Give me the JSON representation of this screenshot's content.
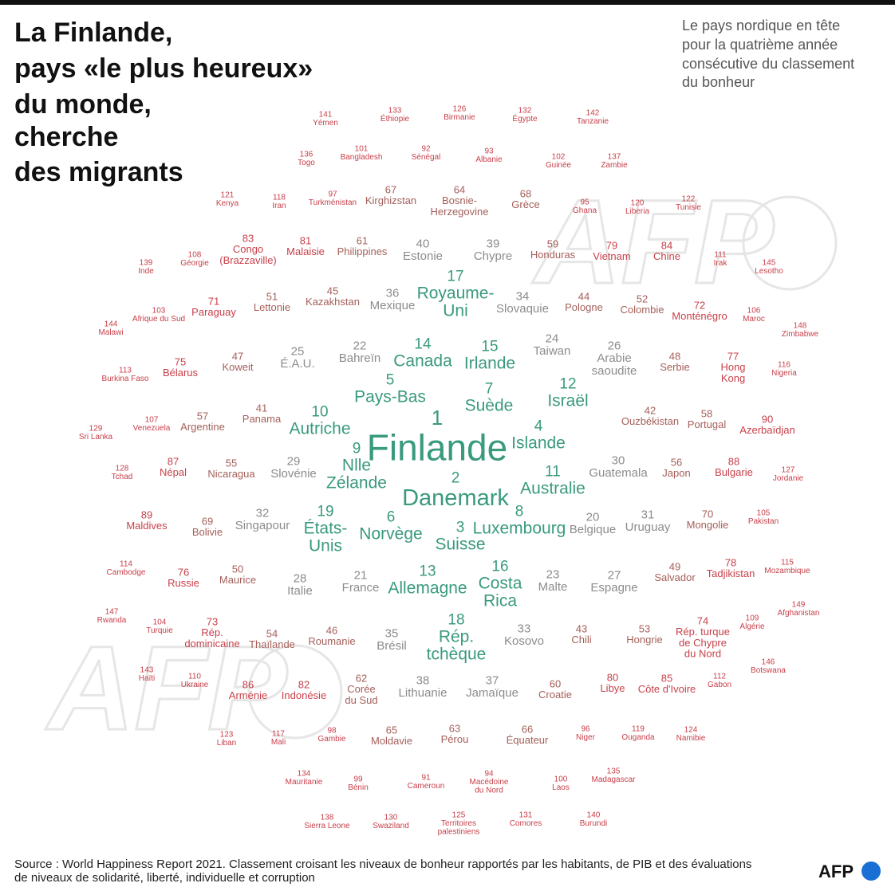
{
  "header": {
    "title": [
      "La Finlande,",
      "pays «le plus heureux»",
      "du monde,",
      "cherche",
      "des migrants"
    ],
    "subtitle": [
      "Le pays nordique en tête",
      "pour la quatrième année",
      "consécutive du classement",
      "du bonheur"
    ]
  },
  "items": [
    {
      "rank": 141,
      "name": [
        "Yémen"
      ]
    },
    {
      "rank": 133,
      "name": [
        "Éthiopie"
      ]
    },
    {
      "rank": 126,
      "name": [
        "Birmanie"
      ]
    },
    {
      "rank": 132,
      "name": [
        "Égypte"
      ]
    },
    {
      "rank": 142,
      "name": [
        "Tanzanie"
      ]
    },
    {
      "rank": 136,
      "name": [
        "Togo"
      ]
    },
    {
      "rank": 101,
      "name": [
        "Bangladesh"
      ]
    },
    {
      "rank": 92,
      "name": [
        "Sénégal"
      ]
    },
    {
      "rank": 93,
      "name": [
        "Albanie"
      ]
    },
    {
      "rank": 102,
      "name": [
        "Guinée"
      ]
    },
    {
      "rank": 137,
      "name": [
        "Zambie"
      ]
    },
    {
      "rank": 121,
      "name": [
        "Kenya"
      ]
    },
    {
      "rank": 118,
      "name": [
        "Iran"
      ]
    },
    {
      "rank": 97,
      "name": [
        "Turkménistan"
      ]
    },
    {
      "rank": 67,
      "name": [
        "Kirghizstan"
      ]
    },
    {
      "rank": 64,
      "name": [
        "Bosnie-",
        "Herzegovine"
      ]
    },
    {
      "rank": 68,
      "name": [
        "Grèce"
      ]
    },
    {
      "rank": 95,
      "name": [
        "Ghana"
      ]
    },
    {
      "rank": 120,
      "name": [
        "Liberia"
      ]
    },
    {
      "rank": 122,
      "name": [
        "Tunisie"
      ]
    },
    {
      "rank": 139,
      "name": [
        "Inde"
      ]
    },
    {
      "rank": 108,
      "name": [
        "Géorgie"
      ]
    },
    {
      "rank": 83,
      "name": [
        "Congo",
        "(Brazzaville)"
      ]
    },
    {
      "rank": 81,
      "name": [
        "Malaisie"
      ]
    },
    {
      "rank": 61,
      "name": [
        "Philippines"
      ]
    },
    {
      "rank": 40,
      "name": [
        "Estonie"
      ]
    },
    {
      "rank": 39,
      "name": [
        "Chypre"
      ]
    },
    {
      "rank": 59,
      "name": [
        "Honduras"
      ]
    },
    {
      "rank": 79,
      "name": [
        "Vietnam"
      ]
    },
    {
      "rank": 84,
      "name": [
        "Chine"
      ]
    },
    {
      "rank": 111,
      "name": [
        "Irak"
      ]
    },
    {
      "rank": 145,
      "name": [
        "Lesotho"
      ]
    },
    {
      "rank": 17,
      "name": [
        "Royaume-",
        "Uni"
      ]
    },
    {
      "rank": 144,
      "name": [
        "Malawi"
      ]
    },
    {
      "rank": 103,
      "name": [
        "Afrique du Sud"
      ]
    },
    {
      "rank": 71,
      "name": [
        "Paraguay"
      ]
    },
    {
      "rank": 51,
      "name": [
        "Lettonie"
      ]
    },
    {
      "rank": 45,
      "name": [
        "Kazakhstan"
      ]
    },
    {
      "rank": 36,
      "name": [
        "Mexique"
      ]
    },
    {
      "rank": 34,
      "name": [
        "Slovaquie"
      ]
    },
    {
      "rank": 44,
      "name": [
        "Pologne"
      ]
    },
    {
      "rank": 52,
      "name": [
        "Colombie"
      ]
    },
    {
      "rank": 72,
      "name": [
        "Monténégro"
      ]
    },
    {
      "rank": 106,
      "name": [
        "Maroc"
      ]
    },
    {
      "rank": 148,
      "name": [
        "Zimbabwe"
      ]
    },
    {
      "rank": 25,
      "name": [
        "É.A.U."
      ]
    },
    {
      "rank": 22,
      "name": [
        "Bahreïn"
      ]
    },
    {
      "rank": 14,
      "name": [
        "Canada"
      ]
    },
    {
      "rank": 15,
      "name": [
        "Irlande"
      ]
    },
    {
      "rank": 24,
      "name": [
        "Taiwan"
      ]
    },
    {
      "rank": 26,
      "name": [
        "Arabie",
        "saoudite"
      ]
    },
    {
      "rank": 48,
      "name": [
        "Serbie"
      ]
    },
    {
      "rank": 77,
      "name": [
        "Hong",
        "Kong"
      ]
    },
    {
      "rank": 116,
      "name": [
        "Nigeria"
      ]
    },
    {
      "rank": 113,
      "name": [
        "Burkina Faso"
      ]
    },
    {
      "rank": 75,
      "name": [
        "Bélarus"
      ]
    },
    {
      "rank": 47,
      "name": [
        "Koweit"
      ]
    },
    {
      "rank": 5,
      "name": [
        "Pays-Bas"
      ]
    },
    {
      "rank": 7,
      "name": [
        "Suède"
      ]
    },
    {
      "rank": 12,
      "name": [
        "Israël"
      ]
    },
    {
      "rank": 1,
      "name": [
        "Finlande"
      ]
    },
    {
      "rank": 10,
      "name": [
        "Autriche"
      ]
    },
    {
      "rank": 4,
      "name": [
        "Islande"
      ]
    },
    {
      "rank": 42,
      "name": [
        "Ouzbékistan"
      ]
    },
    {
      "rank": 58,
      "name": [
        "Portugal"
      ]
    },
    {
      "rank": 90,
      "name": [
        "Azerbaïdjan"
      ]
    },
    {
      "rank": 129,
      "name": [
        "Sri Lanka"
      ]
    },
    {
      "rank": 107,
      "name": [
        "Venezuela"
      ]
    },
    {
      "rank": 57,
      "name": [
        "Argentine"
      ]
    },
    {
      "rank": 41,
      "name": [
        "Panama"
      ]
    },
    {
      "rank": 9,
      "name": [
        "Nlle",
        "Zélande"
      ]
    },
    {
      "rank": 2,
      "name": [
        "Danemark"
      ]
    },
    {
      "rank": 11,
      "name": [
        "Australie"
      ]
    },
    {
      "rank": 30,
      "name": [
        "Guatemala"
      ]
    },
    {
      "rank": 56,
      "name": [
        "Japon"
      ]
    },
    {
      "rank": 88,
      "name": [
        "Bulgarie"
      ]
    },
    {
      "rank": 127,
      "name": [
        "Jordanie"
      ]
    },
    {
      "rank": 128,
      "name": [
        "Tchad"
      ]
    },
    {
      "rank": 87,
      "name": [
        "Népal"
      ]
    },
    {
      "rank": 55,
      "name": [
        "Nicaragua"
      ]
    },
    {
      "rank": 29,
      "name": [
        "Slovénie"
      ]
    },
    {
      "rank": 19,
      "name": [
        "États-",
        "Unis"
      ]
    },
    {
      "rank": 6,
      "name": [
        "Norvège"
      ]
    },
    {
      "rank": 3,
      "name": [
        "Suisse"
      ]
    },
    {
      "rank": 8,
      "name": [
        "Luxembourg"
      ]
    },
    {
      "rank": 20,
      "name": [
        "Belgique"
      ]
    },
    {
      "rank": 31,
      "name": [
        "Uruguay"
      ]
    },
    {
      "rank": 70,
      "name": [
        "Mongolie"
      ]
    },
    {
      "rank": 105,
      "name": [
        "Pakistan"
      ]
    },
    {
      "rank": 89,
      "name": [
        "Maldives"
      ]
    },
    {
      "rank": 69,
      "name": [
        "Bolivie"
      ]
    },
    {
      "rank": 32,
      "name": [
        "Singapour"
      ]
    },
    {
      "rank": 13,
      "name": [
        "Allemagne"
      ]
    },
    {
      "rank": 16,
      "name": [
        "Costa",
        "Rica"
      ]
    },
    {
      "rank": 21,
      "name": [
        "France"
      ]
    },
    {
      "rank": 28,
      "name": [
        "Italie"
      ]
    },
    {
      "rank": 23,
      "name": [
        "Malte"
      ]
    },
    {
      "rank": 27,
      "name": [
        "Espagne"
      ]
    },
    {
      "rank": 49,
      "name": [
        "Salvador"
      ]
    },
    {
      "rank": 78,
      "name": [
        "Tadjikistan"
      ]
    },
    {
      "rank": 115,
      "name": [
        "Mozambique"
      ]
    },
    {
      "rank": 114,
      "name": [
        "Cambodge"
      ]
    },
    {
      "rank": 76,
      "name": [
        "Russie"
      ]
    },
    {
      "rank": 50,
      "name": [
        "Maurice"
      ]
    },
    {
      "rank": 18,
      "name": [
        "Rép.",
        "tchèque"
      ]
    },
    {
      "rank": 147,
      "name": [
        "Rwanda"
      ]
    },
    {
      "rank": 104,
      "name": [
        "Turquie"
      ]
    },
    {
      "rank": 73,
      "name": [
        "Rép.",
        "dominicaine"
      ]
    },
    {
      "rank": 54,
      "name": [
        "Thaïlande"
      ]
    },
    {
      "rank": 46,
      "name": [
        "Roumanie"
      ]
    },
    {
      "rank": 35,
      "name": [
        "Brésil"
      ]
    },
    {
      "rank": 33,
      "name": [
        "Kosovo"
      ]
    },
    {
      "rank": 43,
      "name": [
        "Chili"
      ]
    },
    {
      "rank": 53,
      "name": [
        "Hongrie"
      ]
    },
    {
      "rank": 74,
      "name": [
        "Rép. turque",
        "de Chypre",
        "du Nord"
      ]
    },
    {
      "rank": 109,
      "name": [
        "Algérie"
      ]
    },
    {
      "rank": 149,
      "name": [
        "Afghanistan"
      ]
    },
    {
      "rank": 146,
      "name": [
        "Botswana"
      ]
    },
    {
      "rank": 143,
      "name": [
        "Haïti"
      ]
    },
    {
      "rank": 110,
      "name": [
        "Ukraine"
      ]
    },
    {
      "rank": 86,
      "name": [
        "Arménie"
      ]
    },
    {
      "rank": 82,
      "name": [
        "Indonésie"
      ]
    },
    {
      "rank": 62,
      "name": [
        "Corée",
        "du Sud"
      ]
    },
    {
      "rank": 38,
      "name": [
        "Lithuanie"
      ]
    },
    {
      "rank": 37,
      "name": [
        "Jamaïque"
      ]
    },
    {
      "rank": 60,
      "name": [
        "Croatie"
      ]
    },
    {
      "rank": 80,
      "name": [
        "Libye"
      ]
    },
    {
      "rank": 85,
      "name": [
        "Côte d'Ivoire"
      ]
    },
    {
      "rank": 112,
      "name": [
        "Gabon"
      ]
    },
    {
      "rank": 123,
      "name": [
        "Liban"
      ]
    },
    {
      "rank": 117,
      "name": [
        "Mali"
      ]
    },
    {
      "rank": 98,
      "name": [
        "Gambie"
      ]
    },
    {
      "rank": 65,
      "name": [
        "Moldavie"
      ]
    },
    {
      "rank": 63,
      "name": [
        "Pérou"
      ]
    },
    {
      "rank": 66,
      "name": [
        "Équateur"
      ]
    },
    {
      "rank": 96,
      "name": [
        "Niger"
      ]
    },
    {
      "rank": 119,
      "name": [
        "Ouganda"
      ]
    },
    {
      "rank": 124,
      "name": [
        "Namibie"
      ]
    },
    {
      "rank": 134,
      "name": [
        "Mauritanie"
      ]
    },
    {
      "rank": 99,
      "name": [
        "Bénin"
      ]
    },
    {
      "rank": 91,
      "name": [
        "Cameroun"
      ]
    },
    {
      "rank": 94,
      "name": [
        "Macédoine",
        "du Nord"
      ]
    },
    {
      "rank": 100,
      "name": [
        "Laos"
      ]
    },
    {
      "rank": 135,
      "name": [
        "Madagascar"
      ]
    },
    {
      "rank": 138,
      "name": [
        "Sierra Leone"
      ]
    },
    {
      "rank": 130,
      "name": [
        "Swaziland"
      ]
    },
    {
      "rank": 125,
      "name": [
        "Territoires",
        "palestiniens"
      ]
    },
    {
      "rank": 131,
      "name": [
        "Comores"
      ]
    },
    {
      "rank": 140,
      "name": [
        "Burundi"
      ]
    }
  ],
  "footer": {
    "source": [
      "Source : World Happiness Report 2021. Classement croisant les niveaux de bonheur rapportés par les habitants, de PIB et des évaluations",
      "de niveaux de solidarité, liberté, individuelle et corruption"
    ],
    "logo": "AFP",
    "watermark": "AFP"
  }
}
